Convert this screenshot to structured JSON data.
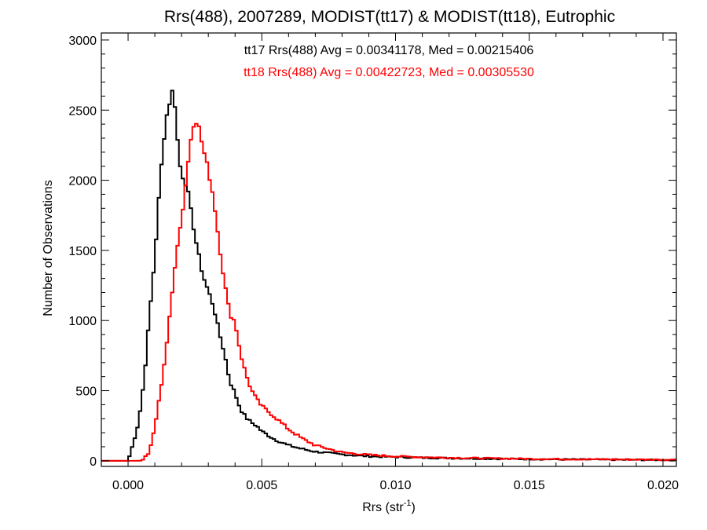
{
  "chart_data": {
    "type": "line",
    "title": "Rrs(488), 2007289, MODIST(tt17) & MODIST(tt18), Eutrophic",
    "xlabel_main": "Rrs (str",
    "xlabel_sup": "-1",
    "xlabel_end": ")",
    "ylabel": "Number of Observations",
    "xlim": [
      -0.001,
      0.0205
    ],
    "ylim": [
      -40,
      3050
    ],
    "x_ticks": [
      0.0,
      0.005,
      0.01,
      0.015,
      0.02
    ],
    "x_tick_labels": [
      "0.000",
      "0.005",
      "0.010",
      "0.015",
      "0.020"
    ],
    "y_ticks": [
      0,
      500,
      1000,
      1500,
      2000,
      2500,
      3000
    ],
    "y_tick_labels": [
      "0",
      "500",
      "1000",
      "1500",
      "2000",
      "2500",
      "3000"
    ],
    "grid": false,
    "annotations": [
      {
        "text": "tt17 Rrs(488) Avg = 0.00341178, Med = 0.00215406",
        "color": "#000000"
      },
      {
        "text": "tt18 Rrs(488) Avg = 0.00422723, Med = 0.00305530",
        "color": "#ff0000"
      }
    ],
    "series": [
      {
        "color": "#000000",
        "x": [
          0.0,
          0.0002,
          0.0004,
          0.0006,
          0.0008,
          0.001,
          0.0012,
          0.0014,
          0.0016,
          0.0017,
          0.0018,
          0.0019,
          0.002,
          0.0022,
          0.0024,
          0.0026,
          0.0028,
          0.003,
          0.0032,
          0.0034,
          0.0036,
          0.0038,
          0.004,
          0.0042,
          0.0044,
          0.0046,
          0.0048,
          0.005,
          0.0055,
          0.006,
          0.0065,
          0.007,
          0.008,
          0.009,
          0.01,
          0.011,
          0.012,
          0.013,
          0.014,
          0.015,
          0.016,
          0.017,
          0.018,
          0.019,
          0.02,
          0.0205
        ],
        "y": [
          0,
          130,
          280,
          580,
          1030,
          1450,
          2000,
          2420,
          2600,
          2660,
          2420,
          2150,
          2050,
          1960,
          1720,
          1500,
          1320,
          1210,
          1100,
          920,
          770,
          570,
          480,
          370,
          310,
          275,
          250,
          210,
          150,
          110,
          85,
          65,
          45,
          32,
          27,
          22,
          19,
          16,
          14,
          12,
          10,
          9,
          8,
          7,
          6,
          5
        ]
      },
      {
        "color": "#ff0000",
        "x": [
          0.0,
          0.0005,
          0.0008,
          0.001,
          0.0012,
          0.0014,
          0.0016,
          0.0018,
          0.002,
          0.0022,
          0.0024,
          0.0025,
          0.0026,
          0.0028,
          0.003,
          0.0032,
          0.0034,
          0.0036,
          0.0038,
          0.004,
          0.0042,
          0.0044,
          0.0046,
          0.0048,
          0.005,
          0.0055,
          0.006,
          0.0065,
          0.007,
          0.0075,
          0.008,
          0.009,
          0.01,
          0.011,
          0.012,
          0.013,
          0.014,
          0.015,
          0.016,
          0.017,
          0.018,
          0.019,
          0.02,
          0.0205
        ],
        "y": [
          0,
          0,
          60,
          240,
          480,
          760,
          1100,
          1490,
          1720,
          2050,
          2380,
          2430,
          2420,
          2230,
          2070,
          1870,
          1560,
          1280,
          1050,
          990,
          770,
          620,
          510,
          440,
          390,
          310,
          225,
          160,
          110,
          85,
          60,
          42,
          32,
          26,
          22,
          19,
          16,
          14,
          12,
          11,
          10,
          9,
          8,
          7
        ]
      }
    ]
  }
}
